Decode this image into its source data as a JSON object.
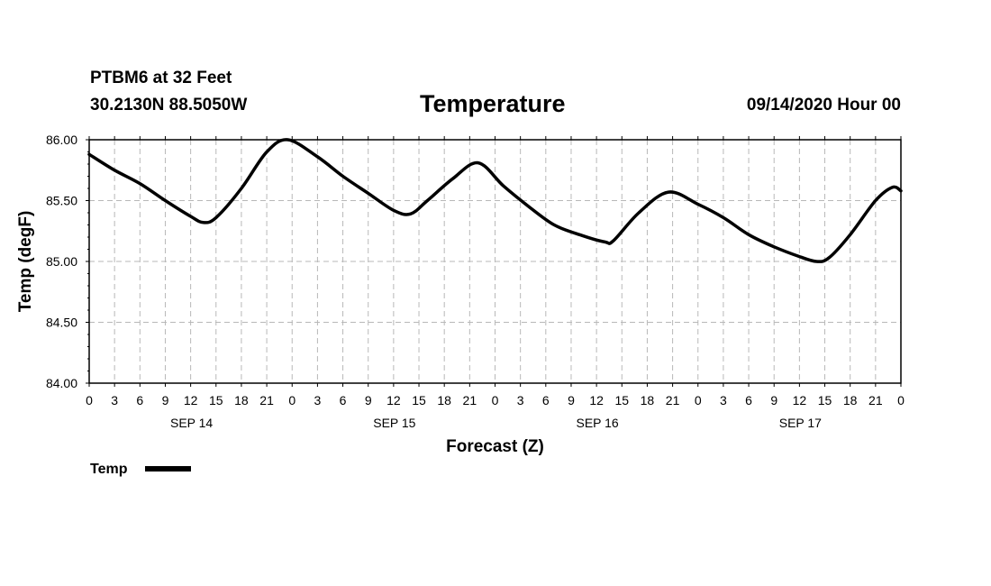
{
  "header": {
    "station": "PTBM6 at 32 Feet",
    "coords": "30.2130N 88.5050W",
    "title": "Temperature",
    "issued": "09/14/2020 Hour 00"
  },
  "chart_data": {
    "type": "line",
    "title": "Temperature",
    "xlabel": "Forecast (Z)",
    "ylabel": "Temp (degF)",
    "x_unit": "forecast hour",
    "xlim": [
      0,
      96
    ],
    "ylim": [
      84.0,
      86.0
    ],
    "y_ticks": [
      "84.00",
      "84.50",
      "85.00",
      "85.50",
      "86.00"
    ],
    "y_tick_values": [
      84.0,
      84.5,
      85.0,
      85.5,
      86.0
    ],
    "x_tick_labels": [
      "0",
      "3",
      "6",
      "9",
      "12",
      "15",
      "18",
      "21",
      "0",
      "3",
      "6",
      "9",
      "12",
      "15",
      "18",
      "21",
      "0",
      "3",
      "6",
      "9",
      "12",
      "15",
      "18",
      "21",
      "0",
      "3",
      "6",
      "9",
      "12",
      "15",
      "18",
      "21",
      "0"
    ],
    "day_labels": [
      {
        "label": "SEP 14",
        "hour": 12
      },
      {
        "label": "SEP 15",
        "hour": 36
      },
      {
        "label": "SEP 16",
        "hour": 60
      },
      {
        "label": "SEP 17",
        "hour": 84
      }
    ],
    "grid": true,
    "legend": "bottom-left",
    "series": [
      {
        "name": "Temp",
        "color": "#000000",
        "x": [
          0,
          3,
          6,
          9,
          12,
          13.5,
          15,
          18,
          21,
          23.5,
          27,
          30,
          33,
          36,
          38,
          40,
          43,
          46,
          49,
          52,
          55,
          58,
          61,
          62,
          65,
          68.5,
          72,
          75,
          78,
          81,
          84,
          86,
          87.5,
          90,
          93,
          95,
          96
        ],
        "values": [
          85.88,
          85.75,
          85.64,
          85.5,
          85.37,
          85.32,
          85.36,
          85.6,
          85.9,
          86.0,
          85.86,
          85.7,
          85.56,
          85.42,
          85.39,
          85.5,
          85.68,
          85.81,
          85.62,
          85.45,
          85.3,
          85.22,
          85.16,
          85.17,
          85.4,
          85.57,
          85.47,
          85.36,
          85.22,
          85.12,
          85.04,
          85.0,
          85.03,
          85.22,
          85.5,
          85.61,
          85.58
        ]
      }
    ]
  }
}
